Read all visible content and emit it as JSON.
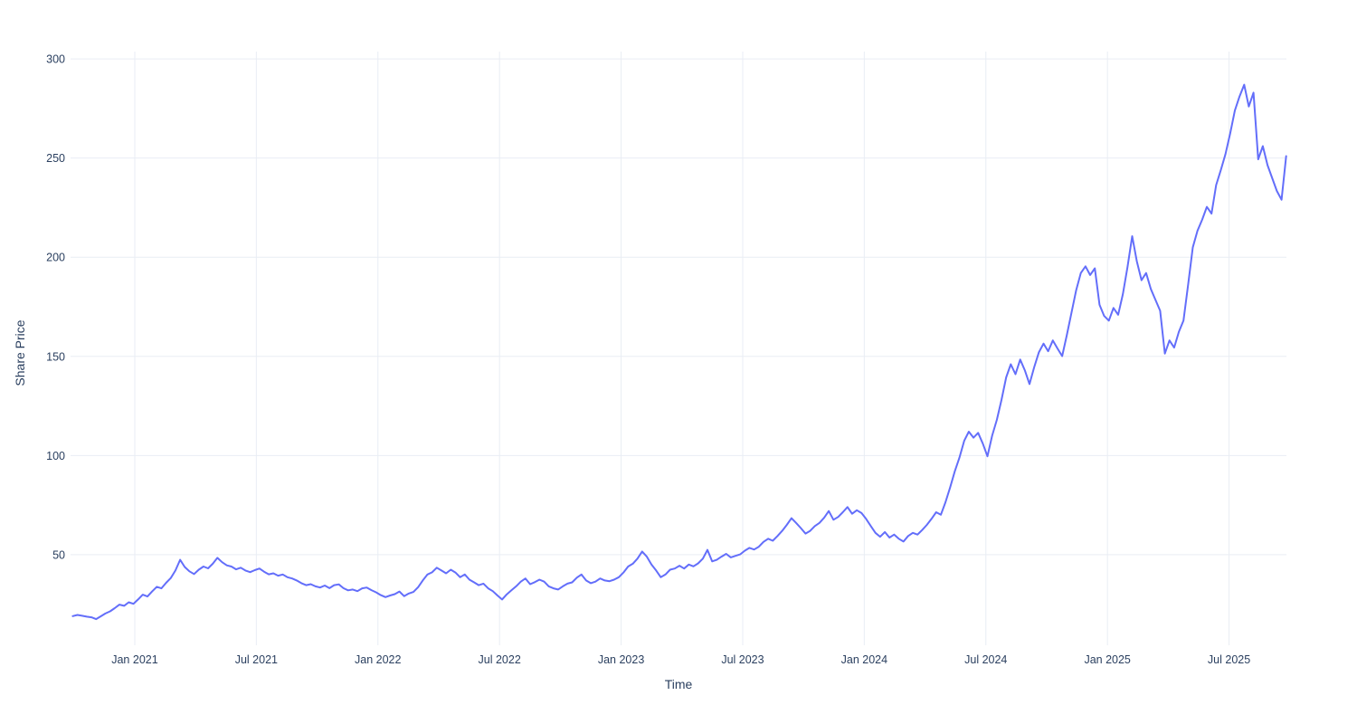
{
  "chart_data": {
    "type": "line",
    "title": "",
    "xlabel": "Time",
    "ylabel": "Share Price",
    "legend_position": "none",
    "grid": true,
    "line_color": "#636efa",
    "grid_color": "#e9edf4",
    "tick_label_color": "#2a3f5f",
    "background_color": "#ffffff",
    "ylim": [
      4.3,
      303.7
    ],
    "y_ticks": [
      50,
      100,
      150,
      200,
      250,
      300
    ],
    "y_tick_labels": [
      "50",
      "100",
      "150",
      "200",
      "250",
      "300"
    ],
    "x_ticks_decimal_years": [
      2021.0,
      2021.5,
      2022.0,
      2022.5,
      2023.0,
      2023.5,
      2024.0,
      2024.5,
      2025.0,
      2025.5
    ],
    "x_tick_labels": [
      "Jan 2021",
      "Jul 2021",
      "Jan 2022",
      "Jul 2022",
      "Jan 2023",
      "Jul 2023",
      "Jan 2024",
      "Jul 2024",
      "Jan 2025",
      "Jul 2025"
    ],
    "xlim_decimal_years": [
      2020.736,
      2025.736
    ],
    "series": [
      {
        "name": "Share Price",
        "x_start_decimal_year": 2020.745,
        "x_step_years": 0.019192,
        "values": [
          19.0,
          19.6,
          19.2,
          18.7,
          18.4,
          17.5,
          18.9,
          20.3,
          21.4,
          23.0,
          24.8,
          24.2,
          26.0,
          25.2,
          27.4,
          29.8,
          28.9,
          31.4,
          33.8,
          33.0,
          35.8,
          38.2,
          42.0,
          47.4,
          43.8,
          41.6,
          40.2,
          42.4,
          44.0,
          43.1,
          45.4,
          48.4,
          46.2,
          44.6,
          44.0,
          42.6,
          43.4,
          42.0,
          41.2,
          42.2,
          43.0,
          41.4,
          40.1,
          40.6,
          39.4,
          40.0,
          38.6,
          38.0,
          37.0,
          35.6,
          34.6,
          35.1,
          34.0,
          33.4,
          34.4,
          33.1,
          34.6,
          35.0,
          33.1,
          32.0,
          32.4,
          31.6,
          33.0,
          33.4,
          32.1,
          31.0,
          29.6,
          28.6,
          29.4,
          30.1,
          31.4,
          29.1,
          30.4,
          31.2,
          33.6,
          37.0,
          40.0,
          41.1,
          43.4,
          42.0,
          40.6,
          42.4,
          41.0,
          38.6,
          40.0,
          37.4,
          36.0,
          34.6,
          35.4,
          33.0,
          31.6,
          29.4,
          27.4,
          30.0,
          32.0,
          34.0,
          36.4,
          38.0,
          35.1,
          36.1,
          37.4,
          36.4,
          34.0,
          33.0,
          32.4,
          34.0,
          35.4,
          36.0,
          38.4,
          40.0,
          37.0,
          35.6,
          36.4,
          38.0,
          37.0,
          36.6,
          37.4,
          38.6,
          41.0,
          44.0,
          45.4,
          48.0,
          51.6,
          49.0,
          45.0,
          42.0,
          38.6,
          40.0,
          42.4,
          43.0,
          44.4,
          43.0,
          45.0,
          44.1,
          45.6,
          48.0,
          52.4,
          46.6,
          47.4,
          49.0,
          50.4,
          48.6,
          49.4,
          50.1,
          52.0,
          53.4,
          52.6,
          54.0,
          56.4,
          58.0,
          57.0,
          59.4,
          62.0,
          65.0,
          68.4,
          66.0,
          63.4,
          60.6,
          62.0,
          64.4,
          66.0,
          68.6,
          72.0,
          67.6,
          69.0,
          71.4,
          74.0,
          70.6,
          72.4,
          71.0,
          68.0,
          64.4,
          61.0,
          59.0,
          61.4,
          58.6,
          60.1,
          58.0,
          56.6,
          59.4,
          61.0,
          60.1,
          62.4,
          65.0,
          68.0,
          71.4,
          70.1,
          76.4,
          84.0,
          92.0,
          99.0,
          107.4,
          112.0,
          109.0,
          111.4,
          106.0,
          99.6,
          110.0,
          118.0,
          128.0,
          139.4,
          146.0,
          141.0,
          148.4,
          143.0,
          136.0,
          144.4,
          152.0,
          156.4,
          152.6,
          158.0,
          154.0,
          150.1,
          160.6,
          172.0,
          183.4,
          192.0,
          195.4,
          191.0,
          194.4,
          176.0,
          170.4,
          168.0,
          174.4,
          171.0,
          181.4,
          195.0,
          210.6,
          198.0,
          188.4,
          192.0,
          184.0,
          178.4,
          173.0,
          151.4,
          158.0,
          154.4,
          162.4,
          168.0,
          186.4,
          205.0,
          213.4,
          219.0,
          225.4,
          222.0,
          236.4,
          244.0,
          252.0,
          262.4,
          274.0,
          281.0,
          287.0,
          276.0,
          283.0,
          249.4,
          256.0,
          246.4,
          240.0,
          233.4,
          229.0,
          251.0
        ]
      }
    ]
  }
}
